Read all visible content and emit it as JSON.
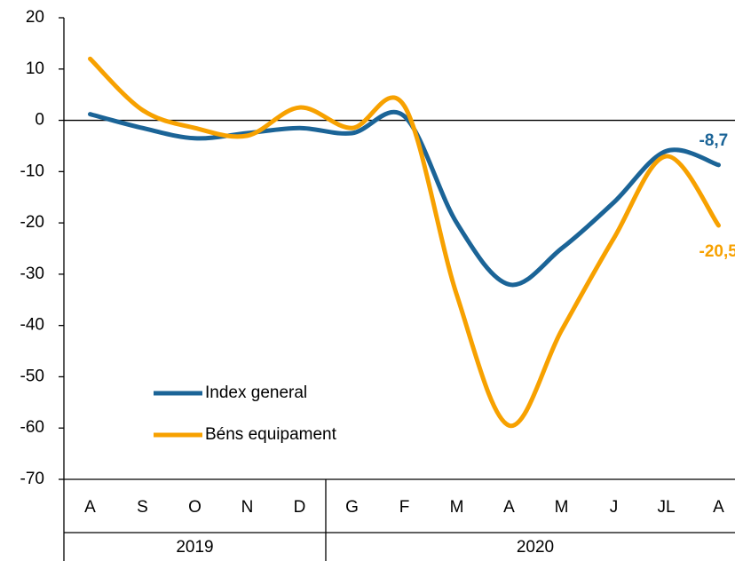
{
  "chart_data": {
    "type": "line",
    "categories": [
      "A",
      "S",
      "O",
      "N",
      "D",
      "G",
      "F",
      "M",
      "A",
      "M",
      "J",
      "JL",
      "A"
    ],
    "groups": [
      {
        "label": "2019",
        "span": 5
      },
      {
        "label": "2020",
        "span": 8
      }
    ],
    "series": [
      {
        "name": "Index general",
        "color": "#1b6497",
        "values": [
          1.2,
          -1.5,
          -3.5,
          -2.5,
          -1.5,
          -2.5,
          0.8,
          -20,
          -32,
          -25,
          -16,
          -6,
          -8.7
        ],
        "value_labels": [
          null,
          null,
          null,
          null,
          null,
          null,
          null,
          null,
          null,
          null,
          null,
          null,
          "-8,7"
        ]
      },
      {
        "name": "Béns equipament",
        "color": "#f7a100",
        "values": [
          12,
          2,
          -1.5,
          -3,
          2.5,
          -1.5,
          2.8,
          -34,
          -59.5,
          -41,
          -23,
          -7,
          -20.5
        ],
        "value_labels": [
          null,
          null,
          null,
          null,
          null,
          null,
          null,
          null,
          null,
          null,
          null,
          null,
          "-20,5"
        ]
      }
    ],
    "ylim": [
      -70,
      20
    ],
    "yticks": [
      -70,
      -60,
      -50,
      -40,
      -30,
      -20,
      -10,
      0,
      10,
      20
    ],
    "legend": "lower-left"
  }
}
